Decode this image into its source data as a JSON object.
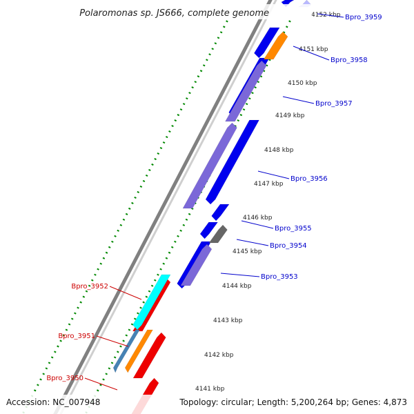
{
  "title": "Polaromonas sp. JS666, complete genome",
  "footer": {
    "accession": "Accession: NC_007948",
    "summary": "Topology: circular; Length: 5,200,264 bp; Genes: 4,873"
  },
  "colors": {
    "backbone": "#888888",
    "forward_gene": "#0000ee",
    "forward_cds": "#7b68d8",
    "reverse_gene": "#ee0000",
    "reverse_cds": "#00ffff",
    "orange_gene": "#ff8800",
    "gray_gene": "#666666",
    "steelblue_gene": "#4682b4",
    "dot_track": "#008800",
    "forward_label": "#0000cc",
    "reverse_label": "#cc0000"
  },
  "scale_labels": [
    {
      "text": "4152 kbp"
    },
    {
      "text": "4151 kbp"
    },
    {
      "text": "4150 kbp"
    },
    {
      "text": "4149 kbp"
    },
    {
      "text": "4148 kbp"
    },
    {
      "text": "4147 kbp"
    },
    {
      "text": "4146 kbp"
    },
    {
      "text": "4145 kbp"
    },
    {
      "text": "4144 kbp"
    },
    {
      "text": "4143 kbp"
    },
    {
      "text": "4142 kbp"
    },
    {
      "text": "4141 kbp"
    }
  ],
  "gene_labels": [
    {
      "text": "Bpro_3959",
      "strand": "forward"
    },
    {
      "text": "Bpro_3958",
      "strand": "forward"
    },
    {
      "text": "Bpro_3957",
      "strand": "forward"
    },
    {
      "text": "Bpro_3956",
      "strand": "forward"
    },
    {
      "text": "Bpro_3955",
      "strand": "forward"
    },
    {
      "text": "Bpro_3954",
      "strand": "forward"
    },
    {
      "text": "Bpro_3953",
      "strand": "forward"
    },
    {
      "text": "Bpro_3952",
      "strand": "reverse"
    },
    {
      "text": "Bpro_3951",
      "strand": "reverse"
    },
    {
      "text": "Bpro_3950",
      "strand": "reverse"
    }
  ]
}
